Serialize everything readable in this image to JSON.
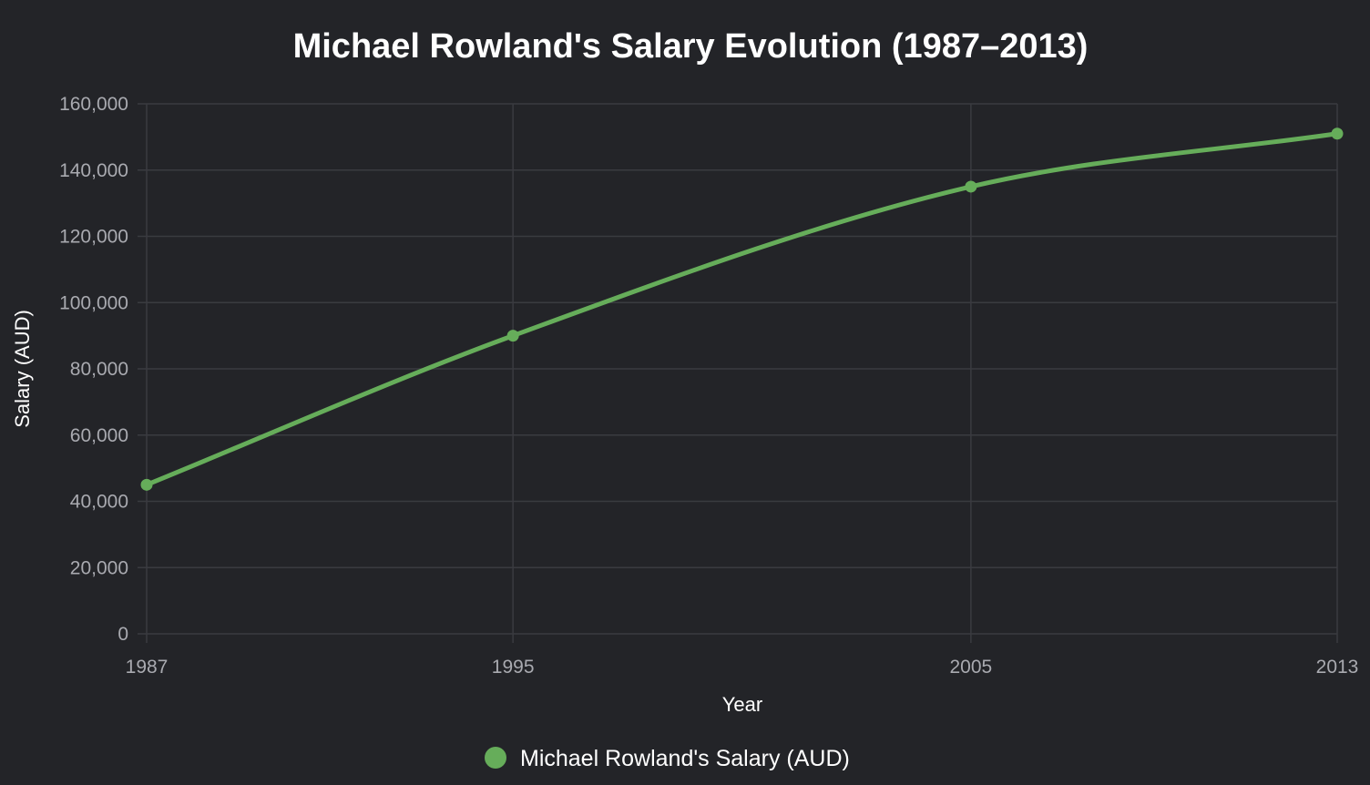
{
  "chart_data": {
    "type": "line",
    "title": "Michael Rowland's Salary Evolution (1987–2013)",
    "xlabel": "Year",
    "ylabel": "Salary (AUD)",
    "categories": [
      "1987",
      "1995",
      "2005",
      "2013"
    ],
    "series": [
      {
        "name": "Michael Rowland's Salary (AUD)",
        "values": [
          45000,
          90000,
          135000,
          151000
        ],
        "color": "#66ad5a"
      }
    ],
    "ylim": [
      0,
      160000
    ],
    "yticks": [
      0,
      20000,
      40000,
      60000,
      80000,
      100000,
      120000,
      140000,
      160000
    ],
    "ytick_labels": [
      "0",
      "20,000",
      "40,000",
      "60,000",
      "80,000",
      "100,000",
      "120,000",
      "140,000",
      "160,000"
    ],
    "grid": true,
    "legend_position": "bottom"
  },
  "colors": {
    "background": "#232428",
    "grid": "#3a3b40",
    "tick_text": "#a9aab0",
    "title_text": "#ffffff"
  }
}
